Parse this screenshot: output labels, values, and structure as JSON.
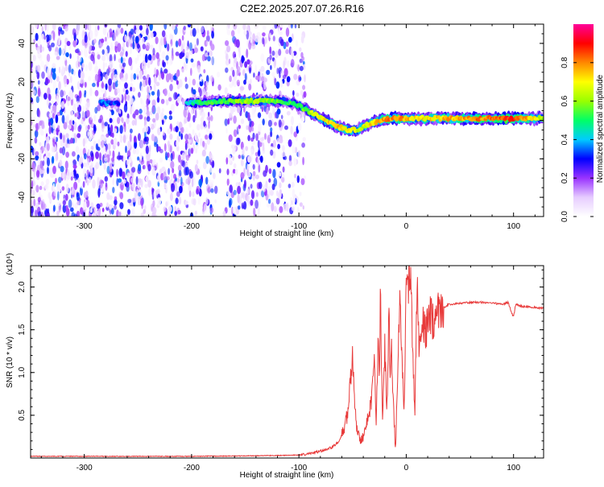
{
  "title": "C2E2.2025.207.07.26.R16",
  "chart_data": [
    {
      "type": "heatmap",
      "xlabel": "Height of straight line (km)",
      "ylabel": "Frequency (Hz)",
      "xlim": [
        -350,
        128
      ],
      "ylim": [
        -50,
        50
      ],
      "x_ticks": [
        -300,
        -200,
        -100,
        0,
        100
      ],
      "x_tick_labels": [
        "-300",
        "-200",
        "-100",
        "0",
        "100"
      ],
      "y_ticks": [
        -40,
        -20,
        0,
        20,
        40
      ],
      "y_tick_labels": [
        "-40",
        "-20",
        "0",
        "20",
        "40"
      ],
      "colorbar": {
        "label": "Normalized spectral amplitude",
        "range": [
          0,
          1
        ],
        "ticks": [
          0.0,
          0.2,
          0.4,
          0.6,
          0.8
        ],
        "tick_labels": [
          "0.0",
          "0.2",
          "0.4",
          "0.6",
          "0.8"
        ],
        "colors": [
          "#ffffff",
          "#e6ccff",
          "#9933ff",
          "#0000ff",
          "#00ccff",
          "#00ff66",
          "#99ff00",
          "#ffff00",
          "#ff8800",
          "#ff0000",
          "#ff0099"
        ]
      },
      "ridge": {
        "x": [
          -285,
          -270,
          -200,
          -170,
          -140,
          -120,
          -105,
          -95,
          -85,
          -75,
          -65,
          -55,
          -45,
          -35,
          -25,
          -15,
          -5,
          10,
          40,
          70,
          100,
          128
        ],
        "frequency": [
          9,
          9,
          9,
          10,
          10,
          10,
          9,
          6,
          3,
          0,
          -3,
          -5,
          -5,
          -2,
          0,
          1,
          1,
          1,
          1,
          1,
          1,
          1
        ],
        "amplitude": [
          0.35,
          0.3,
          0.45,
          0.55,
          0.6,
          0.55,
          0.5,
          0.55,
          0.65,
          0.7,
          0.75,
          0.7,
          0.65,
          0.7,
          0.75,
          0.8,
          0.8,
          0.7,
          0.75,
          0.8,
          0.9,
          0.6
        ]
      },
      "noise_region_x": [
        -350,
        -100
      ]
    },
    {
      "type": "line",
      "xlabel": "Height of straight line (km)",
      "ylabel": "SNR (10 * v/v)",
      "y_multiplier_label": "(x10⁴)",
      "xlim": [
        -350,
        128
      ],
      "ylim": [
        0,
        2.25
      ],
      "x_ticks": [
        -300,
        -200,
        -100,
        0,
        100
      ],
      "x_tick_labels": [
        "-300",
        "-200",
        "-100",
        "0",
        "100"
      ],
      "y_ticks": [
        0.5,
        1.0,
        1.5,
        2.0
      ],
      "y_tick_labels": [
        "0.5",
        "1.0",
        "1.5",
        "2.0"
      ],
      "line_color": "#e83a3a",
      "series": [
        {
          "x": [
            -350,
            -300,
            -250,
            -200,
            -150,
            -120,
            -100,
            -90,
            -80,
            -70,
            -62,
            -58,
            -55,
            -52,
            -50,
            -48,
            -46,
            -44,
            -42,
            -40,
            -38,
            -35,
            -32,
            -30,
            -28,
            -26,
            -25,
            -24,
            -22,
            -20,
            -18,
            -16,
            -15,
            -14,
            -12,
            -10,
            -8,
            -6,
            -4,
            -2,
            0,
            2,
            4,
            6,
            8,
            10,
            12,
            15,
            18,
            22,
            26,
            30,
            35,
            40,
            50,
            60,
            70,
            80,
            90,
            95,
            98,
            100,
            102,
            105,
            110,
            115,
            120,
            128
          ],
          "y": [
            0.02,
            0.02,
            0.02,
            0.02,
            0.025,
            0.03,
            0.035,
            0.05,
            0.08,
            0.12,
            0.2,
            0.35,
            0.5,
            0.9,
            1.15,
            0.6,
            0.35,
            0.25,
            0.2,
            0.25,
            0.35,
            0.5,
            0.7,
            1.2,
            0.4,
            1.6,
            0.9,
            1.9,
            0.4,
            1.3,
            0.5,
            1.85,
            0.9,
            1.4,
            0.7,
            0.05,
            1.0,
            1.9,
            1.1,
            0.6,
            1.95,
            2.0,
            2.25,
            1.3,
            0.5,
            2.1,
            1.2,
            1.65,
            1.45,
            1.7,
            1.55,
            1.72,
            1.76,
            1.8,
            1.81,
            1.82,
            1.82,
            1.81,
            1.8,
            1.82,
            1.7,
            1.65,
            1.8,
            1.78,
            1.77,
            1.77,
            1.76,
            1.75
          ]
        }
      ]
    }
  ]
}
